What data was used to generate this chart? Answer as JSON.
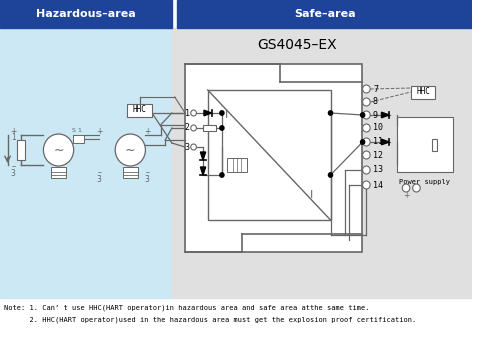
{
  "title": "GS4045–EX",
  "header_left": "Hazardous–area",
  "header_right": "Safe–area",
  "header_bg": "#1e4499",
  "header_text_color": "#ffffff",
  "left_bg": "#cce8f4",
  "right_bg": "#e0e0e0",
  "note_line1": "Note: 1. Can’ t use HHC(HART operator)in hazardous area and safe area atthe same time.",
  "note_line2": "      2. HHC(HART operator)used in the hazardous area must get the explosion proof certification.",
  "line_color": "#666666",
  "text_color": "#444444"
}
